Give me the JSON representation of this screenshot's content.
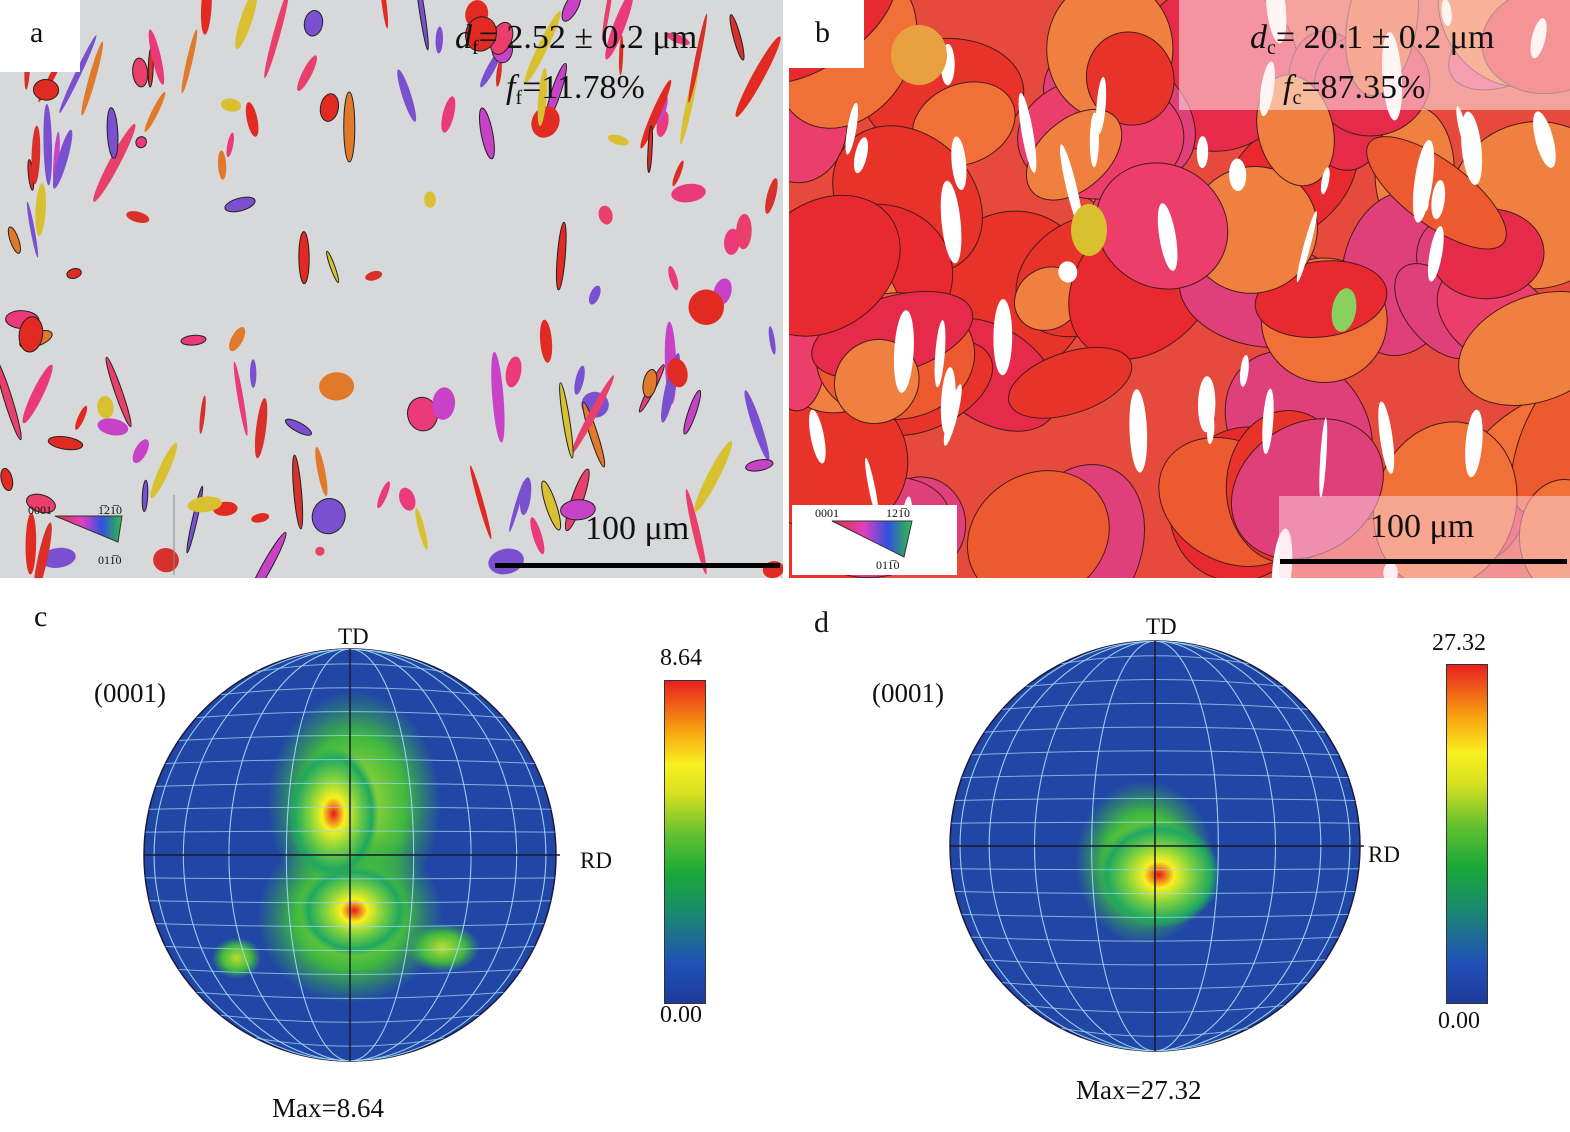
{
  "panels": {
    "a": {
      "letter": "a",
      "d_symbol": "d",
      "d_sub": "f",
      "d_value": "= 2.52 ± 0.2 μm",
      "f_symbol": "f",
      "f_sub": "f",
      "f_value": "=11.78%",
      "scale_bar": "100 μm",
      "ipf_key": {
        "corner_left": "0001",
        "corner_right": "1̅21̅0",
        "corner_bottom": "011̅0"
      }
    },
    "b": {
      "letter": "b",
      "d_symbol": "d",
      "d_sub": "c",
      "d_value": "= 20.1 ± 0.2 μm",
      "f_symbol": "f",
      "f_sub": "c",
      "f_value": "=87.35%",
      "scale_bar": "100 μm",
      "ipf_key": {
        "corner_left": "0001",
        "corner_right": "121̅0",
        "corner_bottom": "011̅0"
      }
    },
    "c": {
      "letter": "c",
      "plane": "(0001)",
      "td_label": "TD",
      "rd_label": "RD",
      "colorbar_max": "8.64",
      "colorbar_min": "0.00",
      "max_label": "Max=8.64"
    },
    "d": {
      "letter": "d",
      "plane": "(0001)",
      "td_label": "TD",
      "rd_label": "RD",
      "colorbar_max": "27.32",
      "colorbar_min": "0.00",
      "max_label": "Max=27.32"
    }
  },
  "colors": {
    "background_matrix": "#d7d8d9",
    "grain_red": "#e02a22",
    "grain_orange": "#ee6a2a",
    "grain_pink": "#ea3a78",
    "pole_figure_low": "#2246a6",
    "pole_figure_high": "#e81818"
  }
}
